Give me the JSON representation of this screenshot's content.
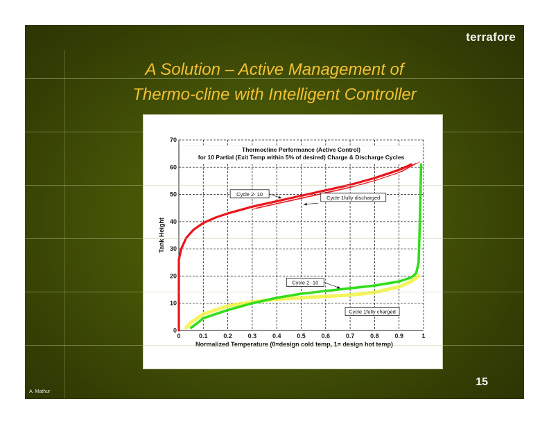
{
  "slide": {
    "logo": "terrafore",
    "title_line1": "A Solution – Active Management of",
    "title_line2": "Thermo-cline with Intelligent Controller",
    "author": "A. Mathur",
    "page_number": "15",
    "colors": {
      "background": "#445206",
      "title": "#f2c033",
      "text": "#f2f2ea"
    }
  },
  "chart_data": {
    "type": "line",
    "title": "Thermocline Performance (Active Control)",
    "subtitle": "for 10 Partial (Exit Temp within 5% of desired) Charge & Discharge Cycles",
    "xlabel": "Normalized Temperature (0=design cold temp, 1= design hot temp)",
    "ylabel": "Tank Height",
    "xlim": [
      0,
      1
    ],
    "ylim": [
      0,
      70
    ],
    "xticks": [
      "0",
      "0.1",
      "0.2",
      "0.3",
      "0.4",
      "0.5",
      "0.6",
      "0.7",
      "0.8",
      "0.9",
      "1"
    ],
    "yticks": [
      "0",
      "10",
      "20",
      "30",
      "40",
      "50",
      "60",
      "70"
    ],
    "grid": true,
    "series": [
      {
        "name": "Discharge Cycle 2-10",
        "color": "#e8141a",
        "x": [
          0.0,
          0.0,
          0.01,
          0.03,
          0.06,
          0.1,
          0.15,
          0.2,
          0.3,
          0.4,
          0.5,
          0.6,
          0.7,
          0.8,
          0.9,
          0.95
        ],
        "y": [
          0,
          26,
          30,
          34,
          37,
          39.5,
          41.5,
          43,
          45.5,
          47.5,
          49.5,
          51.5,
          53.5,
          56,
          59,
          61
        ]
      },
      {
        "name": "Discharge Cycle 1 fully discharged",
        "color": "#e8141a",
        "x": [
          0.3,
          0.4,
          0.5,
          0.6,
          0.7,
          0.8,
          0.9,
          0.97
        ],
        "y": [
          44.5,
          46.5,
          48.5,
          50.5,
          52.5,
          55,
          58,
          61.5
        ]
      },
      {
        "name": "Charge Cycle 2-10",
        "color": "#33dd1a",
        "x": [
          0.05,
          0.08,
          0.1,
          0.15,
          0.2,
          0.3,
          0.4,
          0.5,
          0.6,
          0.7,
          0.8,
          0.9,
          0.95,
          0.97,
          0.98,
          0.985,
          0.99
        ],
        "y": [
          1,
          3,
          4.5,
          6,
          7.5,
          10,
          12,
          13.5,
          14.5,
          15.5,
          16.5,
          18,
          19.5,
          21,
          25,
          40,
          61
        ]
      },
      {
        "name": "Charge Cycle 1 fully charged",
        "color": "#f2f240",
        "x": [
          0.03,
          0.05,
          0.1,
          0.15,
          0.2,
          0.3,
          0.4,
          0.5,
          0.6,
          0.7,
          0.8,
          0.9,
          0.95,
          0.98
        ],
        "y": [
          1,
          3,
          6,
          7.5,
          9,
          10.5,
          11.5,
          12,
          12.5,
          13,
          14,
          16,
          18,
          20
        ]
      }
    ],
    "annotations": [
      {
        "text": "Cycle 2- 10",
        "target": "Discharge Cycle 2-10",
        "label_at": [
          0.2,
          51
        ]
      },
      {
        "text": "Cycle 1fully discharged",
        "target": "Discharge Cycle 1",
        "label_at": [
          0.58,
          48.5
        ]
      },
      {
        "text": "Cycle 2- 10",
        "target": "Charge Cycle 2-10",
        "label_at": [
          0.52,
          18
        ]
      },
      {
        "text": "Cycle 1fully charged",
        "target": "Charge Cycle 1",
        "label_at": [
          0.82,
          8
        ]
      }
    ]
  }
}
